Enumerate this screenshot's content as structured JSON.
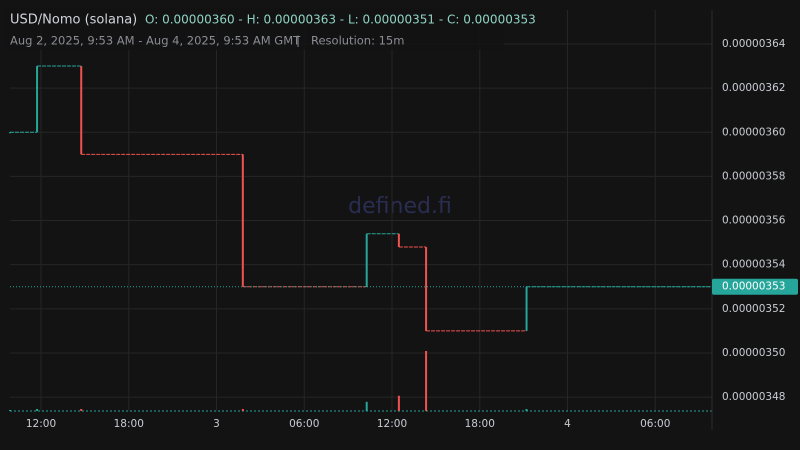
{
  "chart_data": {
    "type": "candlestick",
    "title": "USD/Nomo (solana)",
    "ohlc_text": "O: 0.00000360 - H: 0.00000363 - L: 0.00000351 - C: 0.00000353",
    "subtitle": "Aug 2, 2025, 9:53 AM - Aug 4, 2025, 9:53 AM GMT",
    "resolution": "Resolution: 15m",
    "watermark": "defined.fi",
    "x": [
      9.88,
      11.73,
      14.75,
      25.8,
      34.27,
      36.47,
      38.33,
      45.2
    ],
    "open": [
      3.6e-06,
      3.6e-06,
      3.63e-06,
      3.59e-06,
      3.53e-06,
      3.554e-06,
      3.548e-06,
      3.51e-06
    ],
    "close": [
      3.6e-06,
      3.63e-06,
      3.59e-06,
      3.53e-06,
      3.554e-06,
      3.548e-06,
      3.51e-06,
      3.53e-06
    ],
    "volume": [
      1,
      2,
      2,
      2,
      9,
      15,
      59,
      2
    ],
    "up_color": "#26a69a",
    "down_color": "#ef5350",
    "last_price": 3.53e-06,
    "xlim": [
      9.88,
      57.88
    ],
    "xticks": [
      {
        "value": 12,
        "label": "12:00"
      },
      {
        "value": 18,
        "label": "18:00"
      },
      {
        "value": 24,
        "label": "3"
      },
      {
        "value": 30,
        "label": "06:00"
      },
      {
        "value": 36,
        "label": "12:00"
      },
      {
        "value": 42,
        "label": "18:00"
      },
      {
        "value": 48,
        "label": "4"
      },
      {
        "value": 54,
        "label": "06:00"
      }
    ],
    "ylim": [
      3.4737e-06,
      3.6554e-06
    ],
    "yticks": [
      {
        "value": 3.48e-06,
        "label": "0.00000348"
      },
      {
        "value": 3.5e-06,
        "label": "0.00000350"
      },
      {
        "value": 3.52e-06,
        "label": "0.00000352"
      },
      {
        "value": 3.54e-06,
        "label": "0.00000354"
      },
      {
        "value": 3.56e-06,
        "label": "0.00000356"
      },
      {
        "value": 3.58e-06,
        "label": "0.00000358"
      },
      {
        "value": 3.6e-06,
        "label": "0.00000360"
      },
      {
        "value": 3.62e-06,
        "label": "0.00000362"
      },
      {
        "value": 3.64e-06,
        "label": "0.00000364"
      }
    ],
    "grid": true
  }
}
